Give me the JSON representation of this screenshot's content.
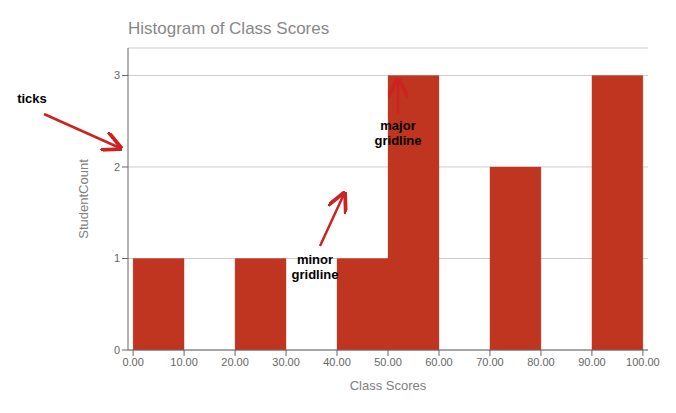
{
  "chart_data": {
    "type": "histogram",
    "title": "Histogram of Class Scores",
    "xlabel": "Class Scores",
    "ylabel": "StudentCount",
    "bins": [
      0,
      10,
      20,
      30,
      40,
      50,
      60,
      70,
      80,
      90,
      100
    ],
    "values": [
      1,
      0,
      1,
      0,
      1,
      3,
      0,
      2,
      0,
      3
    ],
    "color": "#c03520",
    "xlim": [
      -1,
      101
    ],
    "ylim": [
      0,
      3.3
    ],
    "xticks": [
      {
        "value": 0,
        "label": "0.00"
      },
      {
        "value": 10,
        "label": "10.00"
      },
      {
        "value": 20,
        "label": "20.00"
      },
      {
        "value": 30,
        "label": "30.00"
      },
      {
        "value": 40,
        "label": "40.00"
      },
      {
        "value": 50,
        "label": "50.00"
      },
      {
        "value": 60,
        "label": "60.00"
      },
      {
        "value": 70,
        "label": "70.00"
      },
      {
        "value": 80,
        "label": "80.00"
      },
      {
        "value": 90,
        "label": "90.00"
      },
      {
        "value": 100,
        "label": "100.00"
      }
    ],
    "yticks": [
      0,
      1,
      2,
      3
    ],
    "grid": true,
    "annotations": [
      "ticks",
      "major\ngridline",
      "minor\ngridline"
    ]
  }
}
